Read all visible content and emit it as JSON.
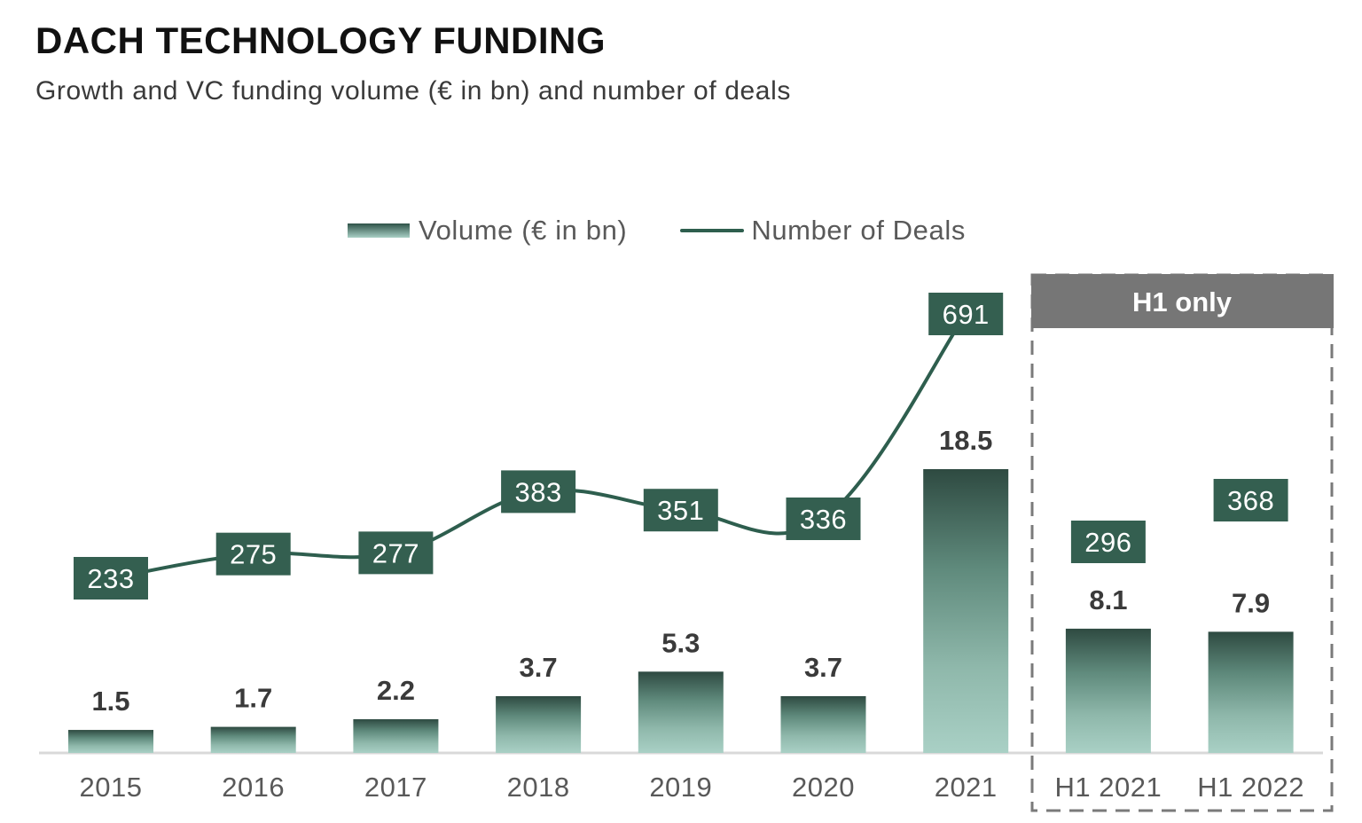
{
  "header": {
    "title": "DACH TECHNOLOGY FUNDING",
    "subtitle": "Growth and VC funding volume (€ in bn) and number of deals"
  },
  "legend": {
    "volume_label": "Volume (€ in bn)",
    "deals_label": "Number of Deals"
  },
  "h1_box": {
    "label": "H1 only"
  },
  "colors": {
    "bar_top": "#2e4a41",
    "bar_bottom": "#a9d0c5",
    "deal_box": "#345f50",
    "line": "#2e5e4e",
    "h1_header": "#767676",
    "dashed_border": "#7a7a7a",
    "axis": "#d9d9d9"
  },
  "chart_data": {
    "type": "bar",
    "title": "DACH TECHNOLOGY FUNDING",
    "subtitle": "Growth and VC funding volume (€ in bn) and number of deals",
    "xlabel": "",
    "ylabel": "",
    "categories": [
      "2015",
      "2016",
      "2017",
      "2018",
      "2019",
      "2020",
      "2021",
      "H1 2021",
      "H1 2022"
    ],
    "series": [
      {
        "name": "Volume (€ in bn)",
        "type": "bar",
        "values": [
          1.5,
          1.7,
          2.2,
          3.7,
          5.3,
          3.7,
          18.5,
          8.1,
          7.9
        ]
      },
      {
        "name": "Number of Deals",
        "type": "line",
        "values": [
          233,
          275,
          277,
          383,
          351,
          336,
          691,
          296,
          368
        ],
        "line_connects_first_n": 7
      }
    ],
    "legend_position": "top",
    "grid": false,
    "annotations": [
      {
        "text": "H1 only",
        "applies_to": [
          "H1 2021",
          "H1 2022"
        ]
      }
    ]
  }
}
